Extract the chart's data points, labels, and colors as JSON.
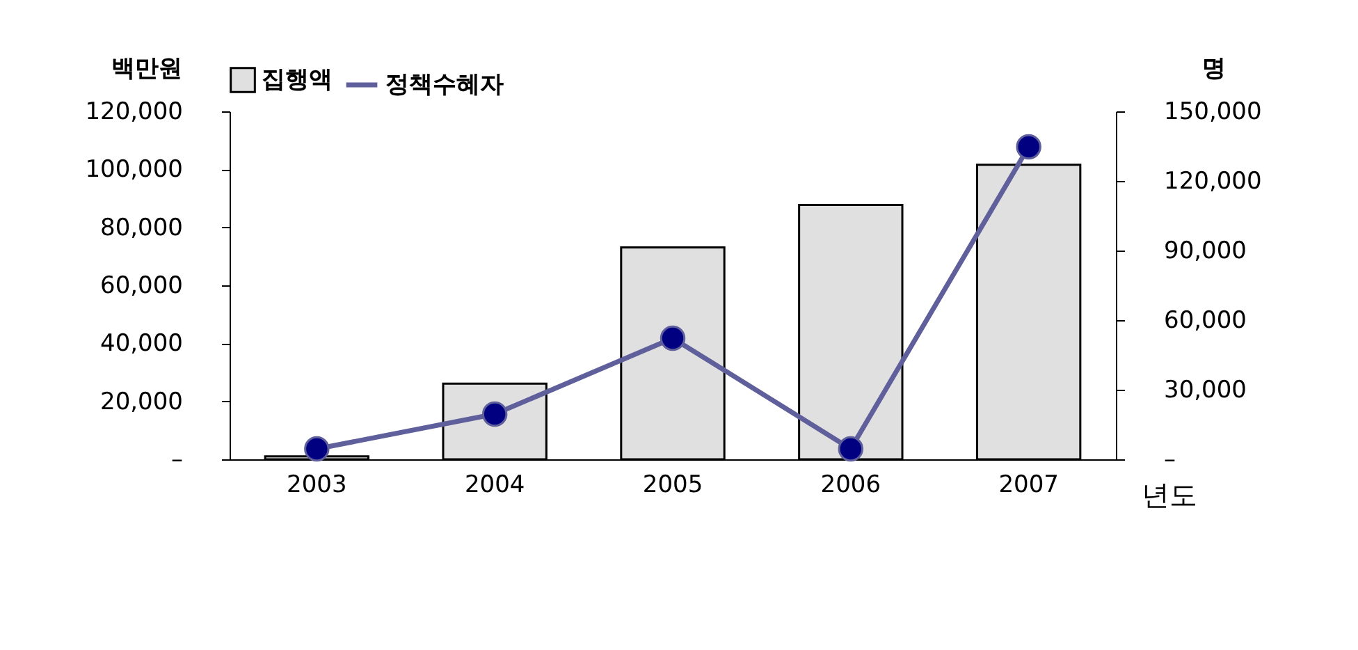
{
  "chart_data": {
    "type": "bar",
    "categories": [
      "2003",
      "2004",
      "2005",
      "2006",
      "2007"
    ],
    "xlabel": "년도",
    "ylabel": "백만원",
    "y2label": "명",
    "series": [
      {
        "name": "집행액",
        "color": "#e0e0e0",
        "values": [
          1000,
          26100,
          73100,
          87700,
          101600
        ]
      },
      {
        "name": "정책수혜자",
        "type": "line",
        "axis": "y2",
        "color": "#5f5f9c",
        "marker": "circle",
        "values": [
          4500,
          19500,
          52200,
          4500,
          134700
        ]
      }
    ],
    "ylim": [
      0,
      120000
    ],
    "yticks": [
      {
        "value": 0,
        "label": "–"
      },
      {
        "value": 20000,
        "label": "20,000"
      },
      {
        "value": 40000,
        "label": "40,000"
      },
      {
        "value": 60000,
        "label": "60,000"
      },
      {
        "value": 80000,
        "label": "80,000"
      },
      {
        "value": 100000,
        "label": "100,000"
      },
      {
        "value": 120000,
        "label": "120,000"
      }
    ],
    "y2lim": [
      0,
      150000
    ],
    "y2ticks": [
      {
        "value": 0,
        "label": "–"
      },
      {
        "value": 30000,
        "label": "30,000"
      },
      {
        "value": 60000,
        "label": "60,000"
      },
      {
        "value": 90000,
        "label": "90,000"
      },
      {
        "value": 120000,
        "label": "120,000"
      },
      {
        "value": 150000,
        "label": "150,000"
      }
    ],
    "grid": false,
    "legend": "top"
  }
}
